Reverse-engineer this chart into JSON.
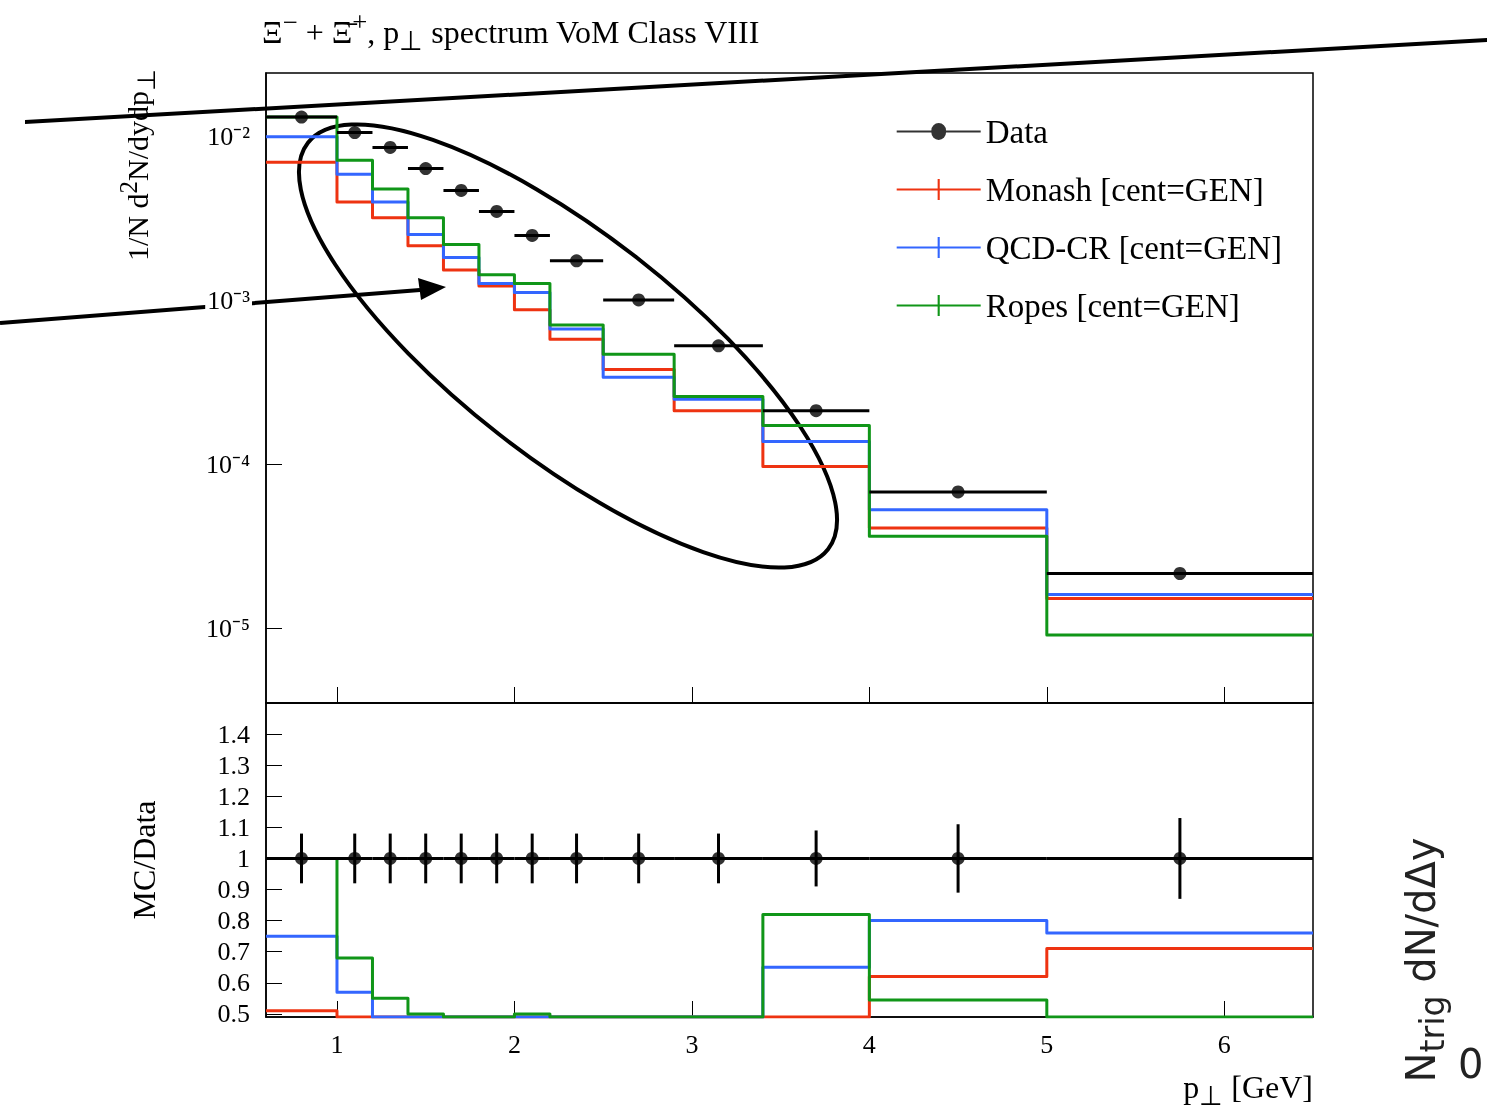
{
  "chart_data": [
    {
      "type": "histogram",
      "title": "Ξ$^{−}$ + Ξ̄$^{+}$, p$_{⊥}$ spectrum VoM Class VIII",
      "ylabel": "1/N d$^{2}$N/dydp$_{⊥}$",
      "bins": [
        0.6,
        1.0,
        1.2,
        1.4,
        1.6,
        1.8,
        2.0,
        2.2,
        2.5,
        2.9,
        3.4,
        4.0,
        5.0,
        6.5
      ],
      "xlim": [
        0.6,
        6.5
      ],
      "xticks": [
        1,
        2,
        3,
        4,
        5,
        6
      ],
      "ylim": [
        3.5e-06,
        0.0245
      ],
      "yticks": [
        {
          "value": 1e-05,
          "label": "10⁻⁵"
        },
        {
          "value": 0.0001,
          "label": "10⁻⁴"
        },
        {
          "value": 0.001,
          "label": "10⁻³"
        },
        {
          "value": 0.01,
          "label": "10⁻²"
        }
      ],
      "log": "y",
      "grid": false,
      "legend": "top right",
      "tick_labels": "y",
      "series": [
        {
          "name": "Data",
          "type": "scatter",
          "marker": "circle",
          "color": "#000000",
          "x": [
            0.8,
            1.1,
            1.3,
            1.5,
            1.7,
            1.9,
            2.1,
            2.35,
            2.7,
            3.15,
            3.7,
            4.5,
            5.75
          ],
          "xerrors": [
            0.2,
            0.1,
            0.1,
            0.1,
            0.1,
            0.1,
            0.1,
            0.15,
            0.2,
            0.25,
            0.3,
            0.5,
            0.75
          ],
          "values": [
            0.0132,
            0.0106,
            0.0086,
            0.0064,
            0.0047,
            0.0035,
            0.0025,
            0.00175,
            0.00101,
            0.00053,
            0.000213,
            6.8e-05,
            2.16e-05
          ]
        },
        {
          "name": "Monash [cent=GEN]",
          "color": "#ee3311",
          "values": [
            0.007,
            0.004,
            0.0032,
            0.00216,
            0.00154,
            0.00123,
            0.00088,
            0.00058,
            0.00038,
            0.000213,
            9.7e-05,
            4.1e-05,
            1.52e-05
          ]
        },
        {
          "name": "QCD-CR [cent=GEN]",
          "color": "#3366ff",
          "values": [
            0.01,
            0.0059,
            0.004,
            0.00253,
            0.00183,
            0.00127,
            0.00112,
            0.00067,
            0.00034,
            0.00025,
            0.000138,
            5.3e-05,
            1.61e-05
          ]
        },
        {
          "name": "Ropes [cent=GEN]",
          "color": "#109618",
          "values": [
            0.0132,
            0.0072,
            0.0048,
            0.0032,
            0.0022,
            0.00144,
            0.00127,
            0.00071,
            0.00047,
            0.00026,
            0.000173,
            3.64e-05,
            9.1e-06
          ]
        }
      ]
    },
    {
      "type": "histogram",
      "xlabel": "p$_{⊥}$ [GeV]",
      "ylabel": "MC/Data",
      "bins": [
        0.6,
        1.0,
        1.2,
        1.4,
        1.6,
        1.8,
        2.0,
        2.2,
        2.5,
        2.9,
        3.4,
        4.0,
        5.0,
        6.5
      ],
      "xlim": [
        0.6,
        6.5
      ],
      "xticks": [
        1,
        2,
        3,
        4,
        5,
        6
      ],
      "ylim": [
        0.49,
        1.5
      ],
      "yticks": [
        0.5,
        0.6,
        0.7,
        0.8,
        0.9,
        1,
        1.1,
        1.2,
        1.3,
        1.4
      ],
      "grid": false,
      "annotations": [
        "N$_{trig}$ dN/dΔy",
        "0"
      ],
      "series": [
        {
          "type": "scatter",
          "marker": "circle",
          "color": "#000000",
          "x": [
            0.8,
            1.1,
            1.3,
            1.5,
            1.7,
            1.9,
            2.1,
            2.35,
            2.7,
            3.15,
            3.7,
            4.5,
            5.75
          ],
          "xerrors": [
            0.2,
            0.1,
            0.1,
            0.1,
            0.1,
            0.1,
            0.1,
            0.15,
            0.2,
            0.25,
            0.3,
            0.5,
            0.75
          ],
          "values": [
            1,
            1,
            1,
            1,
            1,
            1,
            1,
            1,
            1,
            1,
            1,
            1,
            1
          ],
          "errors": [
            0.08,
            0.08,
            0.08,
            0.08,
            0.08,
            0.08,
            0.08,
            0.08,
            0.08,
            0.08,
            0.09,
            0.11,
            0.13
          ]
        },
        {
          "color": "#ee3311",
          "values": [
            0.51,
            null,
            null,
            null,
            null,
            null,
            null,
            null,
            null,
            null,
            null,
            0.62,
            0.71
          ]
        },
        {
          "color": "#3366ff",
          "values": [
            0.75,
            0.57,
            null,
            null,
            null,
            null,
            null,
            null,
            null,
            null,
            0.65,
            0.8,
            0.76
          ]
        },
        {
          "color": "#109618",
          "values": [
            1.0,
            0.68,
            0.55,
            0.5,
            null,
            null,
            0.5,
            null,
            null,
            null,
            0.82,
            0.545,
            null
          ]
        }
      ]
    }
  ]
}
